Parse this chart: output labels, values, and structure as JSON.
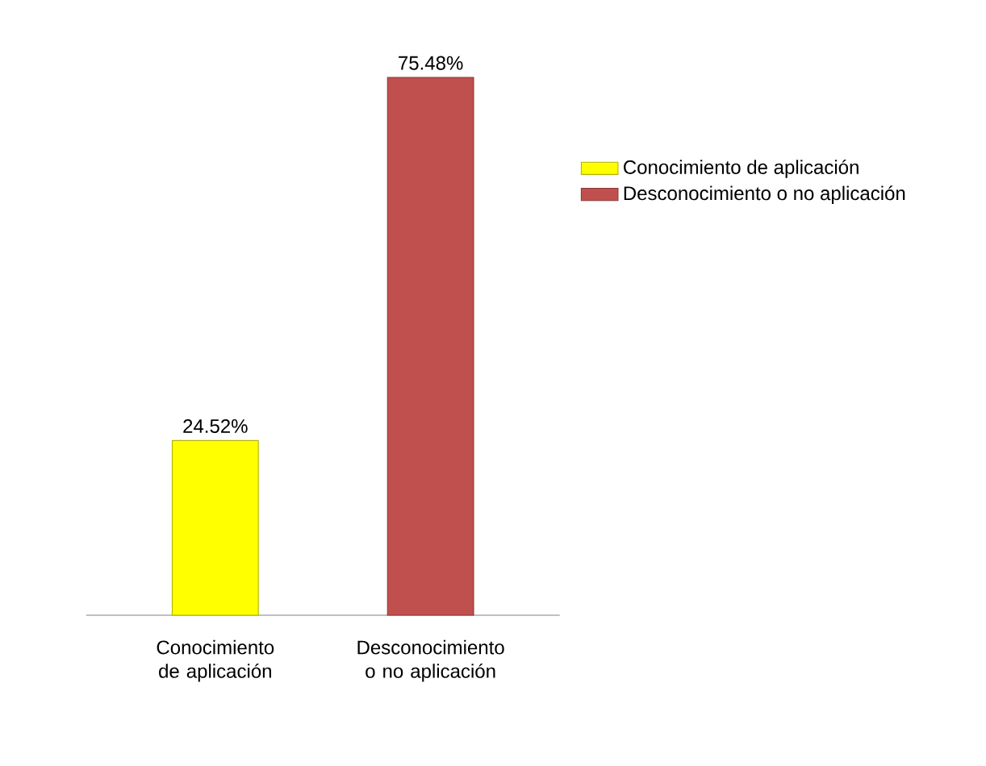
{
  "chart_data": {
    "type": "bar",
    "categories": [
      "Conocimiento de aplicación",
      "Desconocimiento o no aplicación"
    ],
    "series": [
      {
        "name": "Conocimiento de aplicación",
        "color": "#ffff00",
        "values": [
          24.52,
          null
        ],
        "value_labels": [
          "24.52%",
          null
        ]
      },
      {
        "name": "Desconocimiento o no aplicación",
        "color": "#c0504d",
        "values": [
          null,
          75.48
        ],
        "value_labels": [
          null,
          "75.48%"
        ]
      }
    ],
    "legend": "right"
  }
}
